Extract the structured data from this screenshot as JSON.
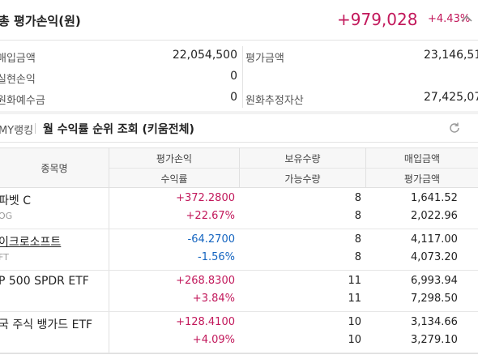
{
  "header": {
    "title": "총 평가손익(원)",
    "profit_loss": "+979,028",
    "rate": "+4.43%"
  },
  "summary": {
    "purchase_label": "매입금액",
    "purchase_value": "22,054,500",
    "eval_label": "평가금액",
    "eval_value": "23,146,51",
    "realized_label": "실현손익",
    "realized_value": "0",
    "krw_deposit_label": "원화예수금",
    "krw_deposit_value": "0",
    "est_assets_label": "원화추정자산",
    "est_assets_value": "27,425,07"
  },
  "ranking": {
    "my_rank": "MY랭킹",
    "title": "월 수익률 순위 조회 (키움전체)"
  },
  "table": {
    "headers": {
      "name": "종목명",
      "pl": "평가손익",
      "rate": "수익률",
      "qty": "보유수량",
      "avail": "가능수량",
      "buy": "매입금액",
      "eval": "평가금액"
    },
    "rows": [
      {
        "name": "파벳 C",
        "ticker": "OG",
        "pl": "+372.2800",
        "rate": "+22.67%",
        "qty": "8",
        "avail": "8",
        "buy": "1,641.52",
        "eval": "2,022.96",
        "sign": "pos"
      },
      {
        "name": "이크로소프트",
        "ticker": "FT",
        "pl": "-64.2700",
        "rate": "-1.56%",
        "qty": "8",
        "avail": "8",
        "buy": "4,117.00",
        "eval": "4,073.20",
        "sign": "neg"
      },
      {
        "name": "P 500 SPDR ETF",
        "ticker": "",
        "pl": "+268.8300",
        "rate": "+3.84%",
        "qty": "11",
        "avail": "11",
        "buy": "6,993.94",
        "eval": "7,298.50",
        "sign": "pos"
      },
      {
        "name": "국 주식 뱅가드 ETF",
        "ticker": "",
        "pl": "+128.4100",
        "rate": "+4.09%",
        "qty": "10",
        "avail": "10",
        "buy": "3,134.66",
        "eval": "3,279.10",
        "sign": "pos"
      }
    ]
  },
  "icons": {
    "caret": "chevron-up-icon",
    "refresh": "refresh-icon"
  },
  "colors": {
    "positive": "#c2185b",
    "negative": "#1565c0"
  }
}
